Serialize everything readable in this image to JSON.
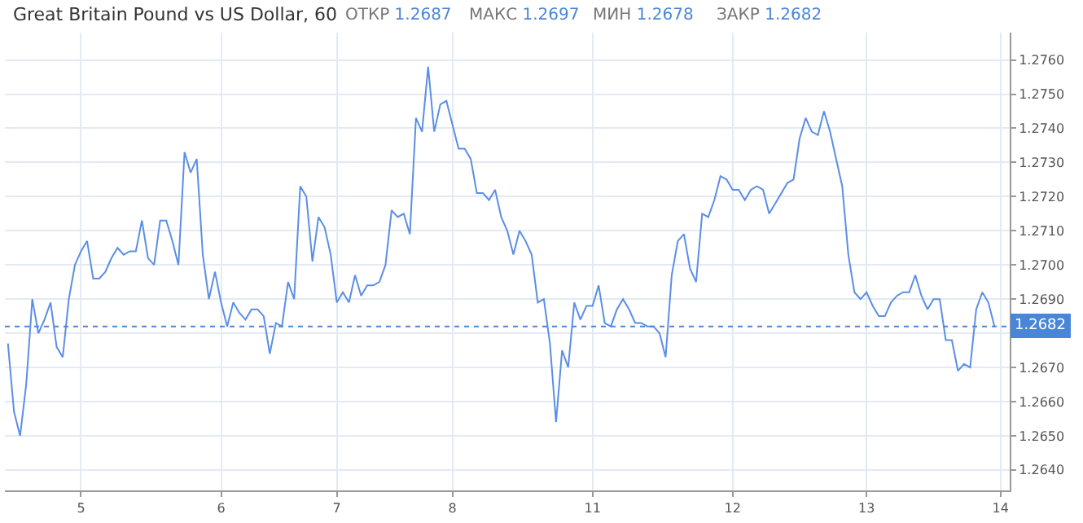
{
  "chart_data": {
    "type": "line",
    "title": "Great Britain Pound vs US Dollar, 60",
    "annotations": [
      "ОТКР 1.2687",
      "МАКС 1.2697",
      "МИН 1.2678",
      "ЗАКР 1.2682"
    ],
    "categories": [
      null,
      null,
      null,
      null,
      null,
      null,
      null,
      null,
      null,
      null,
      null,
      null,
      "5",
      null,
      null,
      null,
      null,
      null,
      null,
      null,
      null,
      null,
      null,
      null,
      null,
      null,
      null,
      null,
      null,
      null,
      null,
      null,
      null,
      null,
      null,
      "6",
      null,
      null,
      null,
      null,
      null,
      null,
      null,
      null,
      null,
      null,
      null,
      null,
      null,
      null,
      null,
      null,
      null,
      null,
      "7",
      null,
      null,
      null,
      null,
      null,
      null,
      null,
      null,
      null,
      null,
      null,
      null,
      null,
      null,
      null,
      null,
      null,
      null,
      "8",
      null,
      null,
      null,
      null,
      null,
      null,
      null,
      null,
      null,
      null,
      null,
      null,
      null,
      null,
      null,
      null,
      null,
      null,
      null,
      null,
      null,
      null,
      "11",
      null,
      null,
      null,
      null,
      null,
      null,
      null,
      null,
      null,
      null,
      null,
      null,
      null,
      null,
      null,
      null,
      null,
      null,
      null,
      null,
      null,
      null,
      "12",
      null,
      null,
      null,
      null,
      null,
      null,
      null,
      null,
      null,
      null,
      null,
      null,
      null,
      null,
      null,
      null,
      null,
      null,
      null,
      null,
      null,
      "13",
      null,
      null,
      null,
      null,
      null,
      null,
      null,
      null,
      null,
      null,
      null,
      null,
      null,
      null,
      null,
      null,
      null,
      null,
      null,
      null,
      null,
      "14",
      null
    ],
    "series": [
      {
        "color": "#5b8ee6",
        "values": [
          1.2677,
          1.2657,
          1.265,
          1.2665,
          1.269,
          1.268,
          1.2684,
          1.2689,
          1.2676,
          1.2673,
          1.269,
          1.27,
          1.2704,
          1.2707,
          1.2696,
          1.2696,
          1.2698,
          1.2702,
          1.2705,
          1.2703,
          1.2704,
          1.2704,
          1.2713,
          1.2702,
          1.27,
          1.2713,
          1.2713,
          1.2707,
          1.27,
          1.2733,
          1.2727,
          1.2731,
          1.2703,
          1.269,
          1.2698,
          1.2689,
          1.2682,
          1.2689,
          1.2686,
          1.2684,
          1.2687,
          1.2687,
          1.2685,
          1.2674,
          1.2683,
          1.2682,
          1.2695,
          1.269,
          1.2723,
          1.272,
          1.2701,
          1.2714,
          1.2711,
          1.2703,
          1.2689,
          1.2692,
          1.2689,
          1.2697,
          1.2691,
          1.2694,
          1.2694,
          1.2695,
          1.27,
          1.2716,
          1.2714,
          1.2715,
          1.2709,
          1.2743,
          1.2739,
          1.2758,
          1.2739,
          1.2747,
          1.2748,
          1.2741,
          1.2734,
          1.2734,
          1.2731,
          1.2721,
          1.2721,
          1.2719,
          1.2722,
          1.2714,
          1.271,
          1.2703,
          1.271,
          1.2707,
          1.2703,
          1.2689,
          1.269,
          1.2677,
          1.2654,
          1.2675,
          1.267,
          1.2689,
          1.2684,
          1.2688,
          1.2688,
          1.2694,
          1.2683,
          1.2682,
          1.2687,
          1.269,
          1.2687,
          1.2683,
          1.2683,
          1.2682,
          1.2682,
          1.268,
          1.2673,
          1.2697,
          1.2707,
          1.2709,
          1.2699,
          1.2695,
          1.2715,
          1.2714,
          1.2719,
          1.2726,
          1.2725,
          1.2722,
          1.2722,
          1.2719,
          1.2722,
          1.2723,
          1.2722,
          1.2715,
          1.2718,
          1.2721,
          1.2724,
          1.2725,
          1.2737,
          1.2743,
          1.2739,
          1.2738,
          1.2745,
          1.2739,
          1.2731,
          1.2723,
          1.2703,
          1.2692,
          1.269,
          1.2692,
          1.2688,
          1.2685,
          1.2685,
          1.2689,
          1.2691,
          1.2692,
          1.2692,
          1.2697,
          1.2691,
          1.2687,
          1.269,
          1.269,
          1.2678,
          1.2678,
          1.2669,
          1.2671,
          1.267,
          1.2687,
          1.2692,
          1.2689,
          1.2682,
          null,
          null
        ]
      }
    ],
    "ylim": [
      1.2634,
      1.2768
    ],
    "yticks": [
      {
        "value": 1.264,
        "label": "1.2640"
      },
      {
        "value": 1.265,
        "label": "1.2650"
      },
      {
        "value": 1.266,
        "label": "1.2660"
      },
      {
        "value": 1.267,
        "label": "1.2670"
      },
      {
        "value": 1.268,
        "label": null
      },
      {
        "value": 1.269,
        "label": "1.2690"
      },
      {
        "value": 1.27,
        "label": "1.2700"
      },
      {
        "value": 1.271,
        "label": "1.2710"
      },
      {
        "value": 1.272,
        "label": "1.2720"
      },
      {
        "value": 1.273,
        "label": "1.2730"
      },
      {
        "value": 1.274,
        "label": "1.2740"
      },
      {
        "value": 1.275,
        "label": "1.2750"
      },
      {
        "value": 1.276,
        "label": "1.2760"
      }
    ],
    "ref_lines": [
      {
        "axis": "y",
        "value": 1.2682,
        "label": "1.2682",
        "color": "#4a86d8",
        "line_style": "dotted"
      }
    ],
    "grid": true,
    "marker": "none",
    "line_style": "solid"
  }
}
